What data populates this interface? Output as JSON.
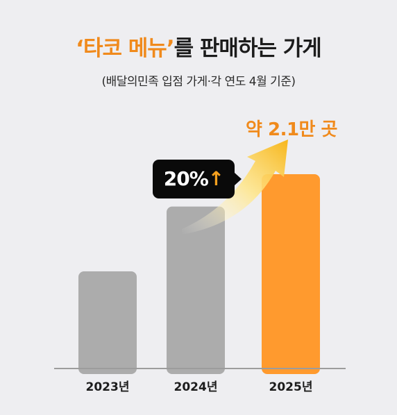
{
  "title": {
    "quote_open": "‘",
    "highlight": "타코 메뉴",
    "quote_close": "’",
    "rest": "를 판매하는 가게"
  },
  "subtitle": "(배달의민족 입점 가게·각 연도 4월 기준)",
  "callout": {
    "value": "20%",
    "arrow": "↑"
  },
  "highlight_label": "약 2.1만 곳",
  "chart_data": {
    "type": "bar",
    "categories": [
      "2023년",
      "2024년",
      "2025년"
    ],
    "values": [
      1.05,
      1.75,
      2.1
    ],
    "unit": "만 곳",
    "ylim": [
      0,
      2.4
    ],
    "grid": false,
    "colors": {
      "default": "#acacac",
      "highlight": "#ff9a2e"
    },
    "highlight_index": 2
  }
}
